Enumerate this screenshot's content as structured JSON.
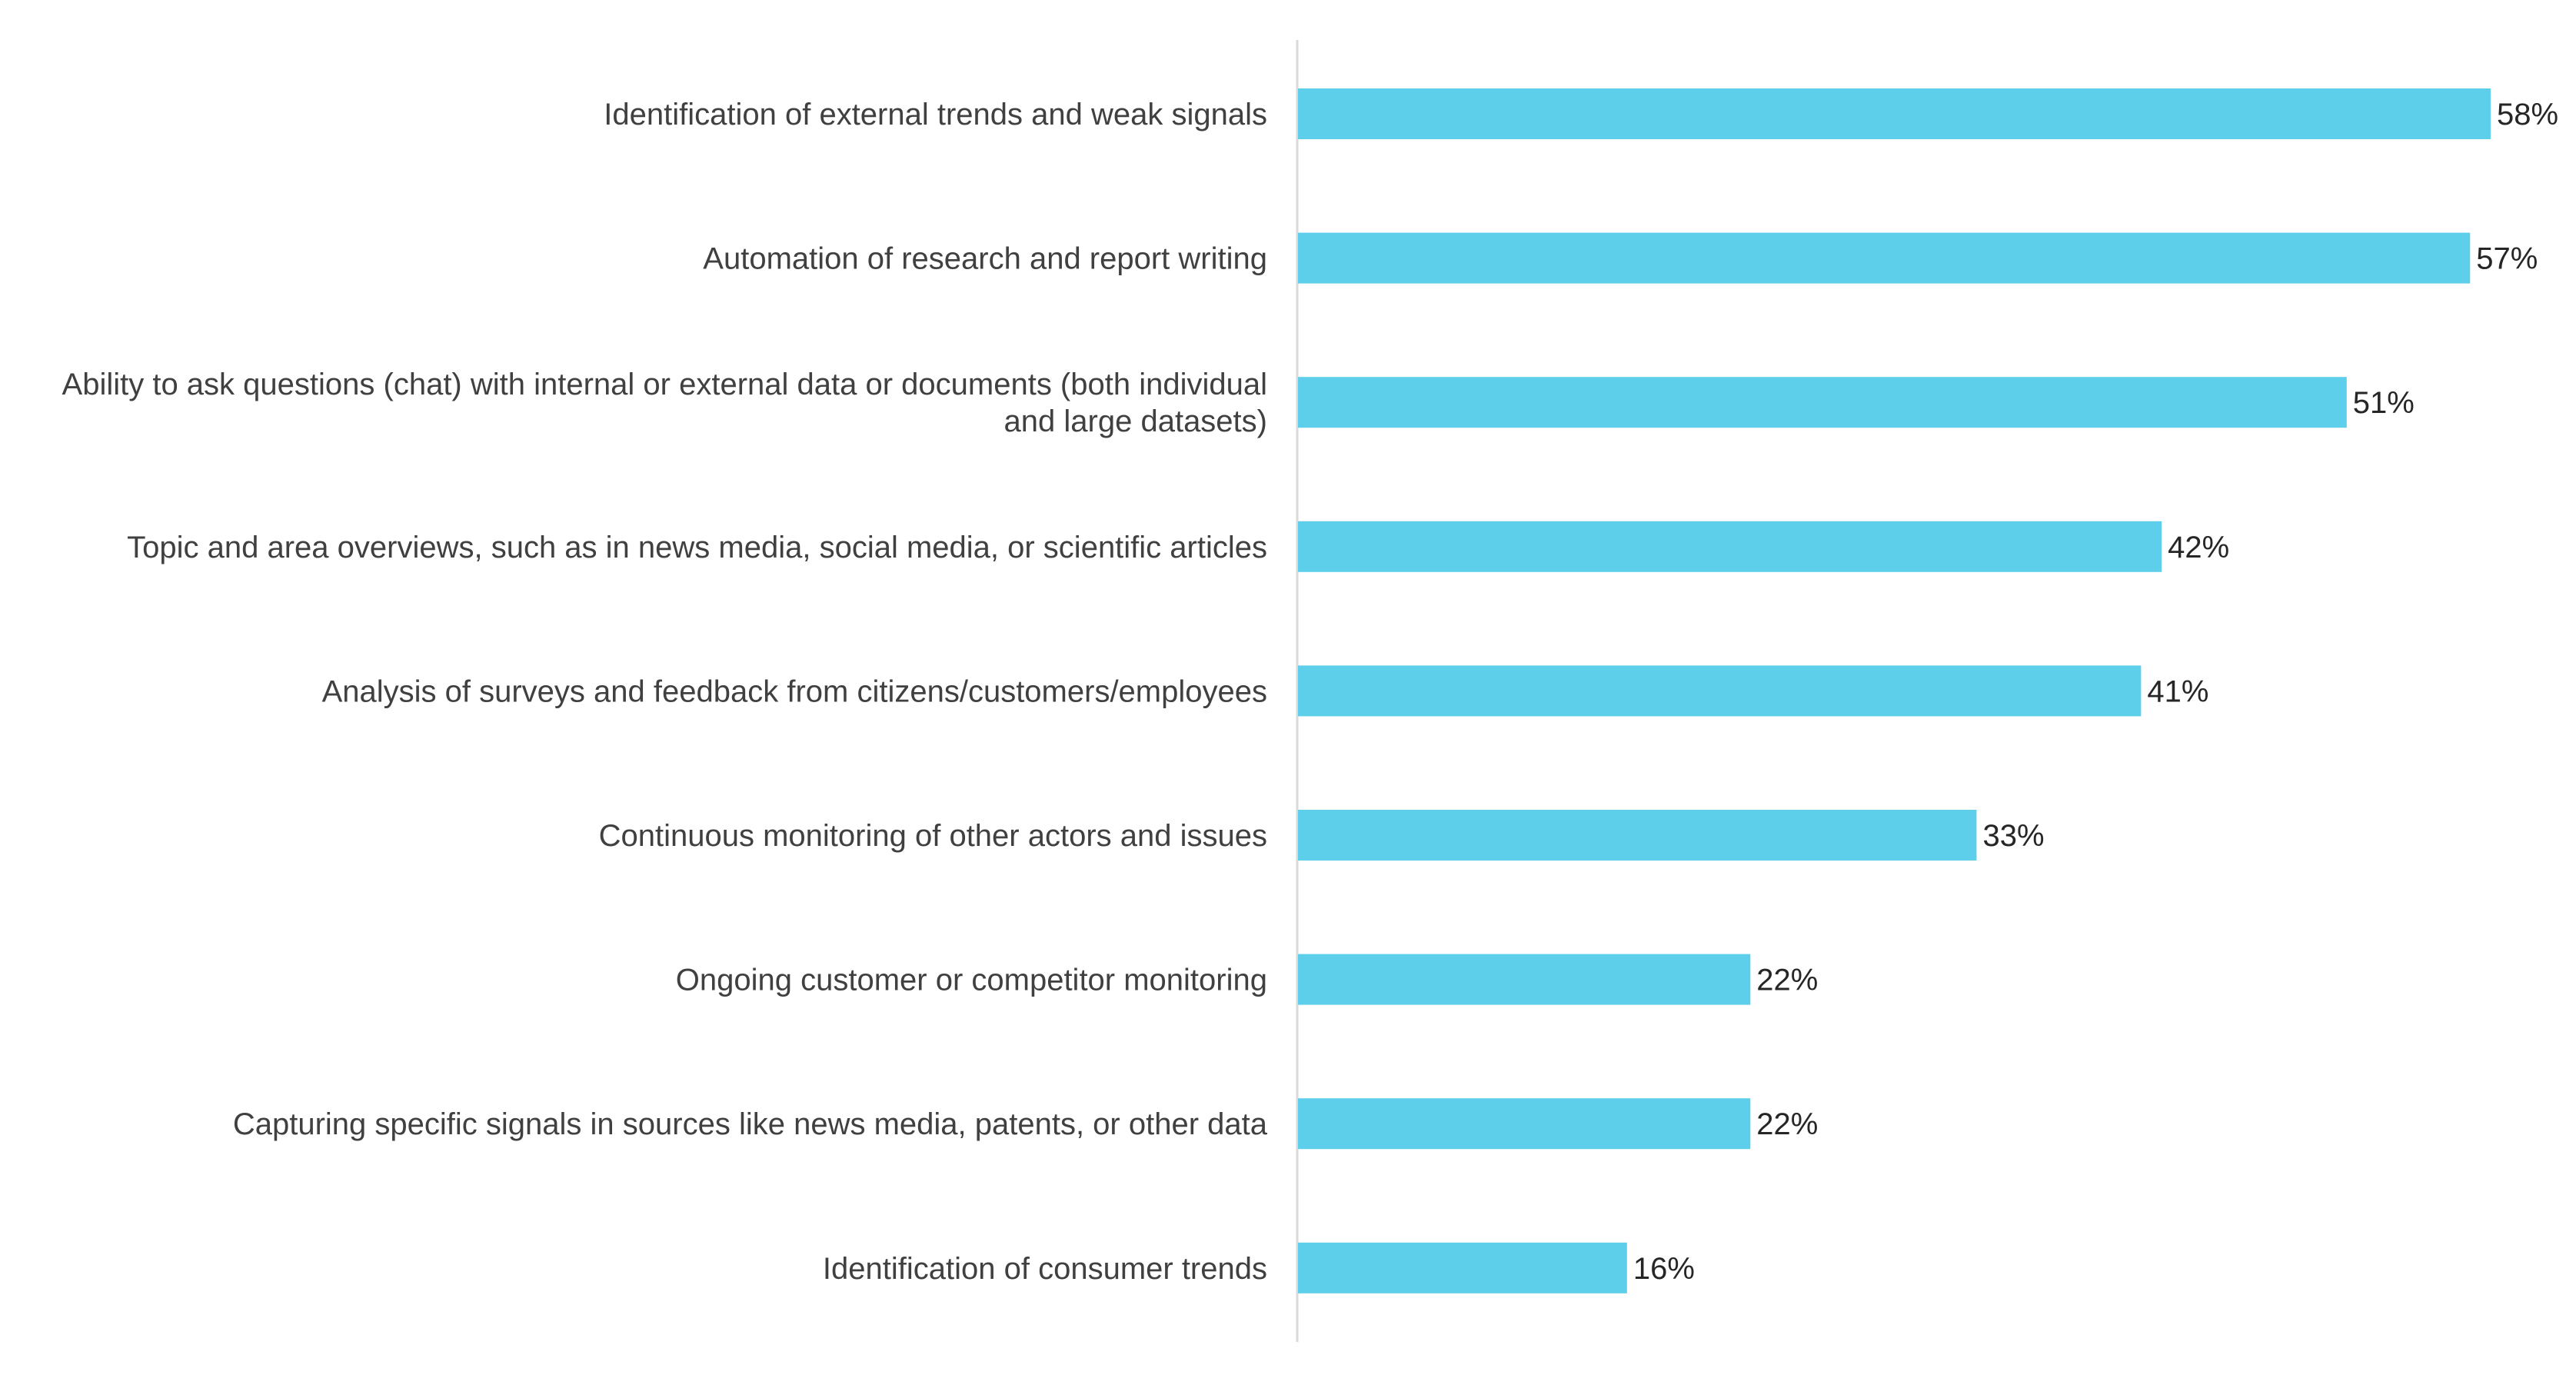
{
  "chart_data": {
    "type": "bar",
    "orientation": "horizontal",
    "title": "",
    "xlabel": "",
    "ylabel": "",
    "xlim": [
      0,
      58
    ],
    "grid": false,
    "legend": "none",
    "bar_color": "#5ecfea",
    "axis_color": "#d9d9d9",
    "value_suffix": "%",
    "categories": [
      [
        "Identification of external trends and weak signals"
      ],
      [
        "Automation of research and report writing"
      ],
      [
        "Ability to ask questions (chat) with internal or external data or documents (both individual",
        "and large datasets)"
      ],
      [
        "Topic and area overviews, such as in news media, social media, or scientific articles"
      ],
      [
        "Analysis of surveys and feedback from citizens/customers/employees"
      ],
      [
        "Continuous monitoring of other actors and issues"
      ],
      [
        "Ongoing customer or competitor monitoring"
      ],
      [
        "Capturing specific signals in sources like news media, patents, or other data"
      ],
      [
        "Identification of consumer trends"
      ]
    ],
    "values": [
      58,
      57,
      51,
      42,
      41,
      33,
      22,
      22,
      16
    ]
  }
}
